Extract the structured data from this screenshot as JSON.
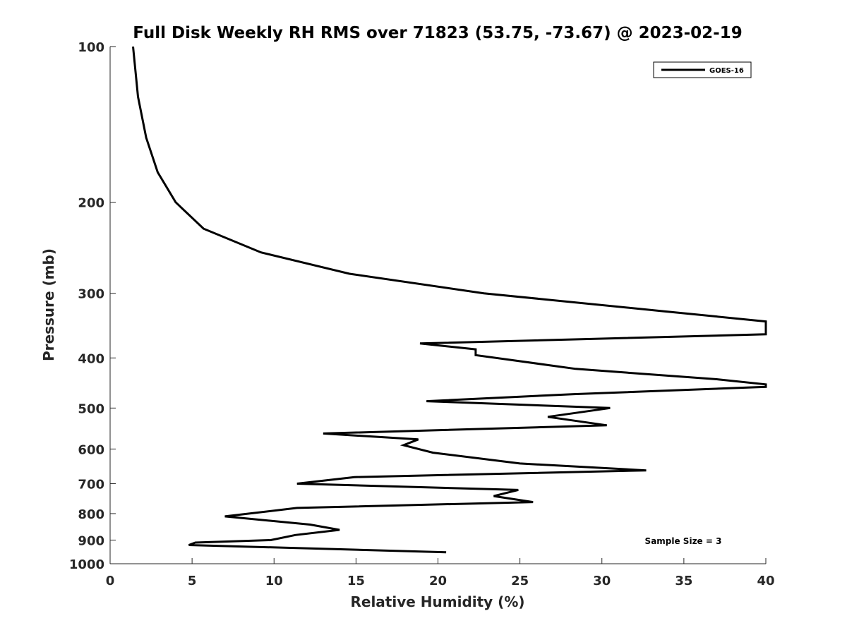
{
  "chart_data": {
    "type": "line",
    "title": "Full Disk Weekly RH RMS over 71823 (53.75, -73.67) @ 2023-02-19",
    "xlabel": "Relative Humidity (%)",
    "ylabel": "Pressure (mb)",
    "xlim": [
      0,
      40
    ],
    "ylim": [
      100,
      1000
    ],
    "y_scale": "log",
    "y_reversed": true,
    "x_ticks": [
      0,
      5,
      10,
      15,
      20,
      25,
      30,
      35,
      40
    ],
    "y_ticks": [
      100,
      200,
      300,
      400,
      500,
      600,
      700,
      800,
      900,
      1000
    ],
    "grid": false,
    "legend_position": "top-right",
    "annotation": "Sample Size = 3",
    "series": [
      {
        "name": "GOES-16",
        "color": "#000000",
        "points": [
          [
            1.4,
            100
          ],
          [
            1.7,
            125
          ],
          [
            2.2,
            150
          ],
          [
            2.9,
            175
          ],
          [
            4.0,
            200
          ],
          [
            5.7,
            225
          ],
          [
            9.2,
            250
          ],
          [
            14.6,
            275
          ],
          [
            22.8,
            300
          ],
          [
            33.8,
            325
          ],
          [
            40.0,
            340
          ],
          [
            40.0,
            360
          ],
          [
            18.9,
            375
          ],
          [
            22.3,
            385
          ],
          [
            22.3,
            395
          ],
          [
            28.4,
            420
          ],
          [
            37.1,
            440
          ],
          [
            40.0,
            450
          ],
          [
            40.0,
            455
          ],
          [
            28.3,
            470
          ],
          [
            19.3,
            485
          ],
          [
            30.5,
            500
          ],
          [
            26.7,
            520
          ],
          [
            30.3,
            540
          ],
          [
            13.0,
            560
          ],
          [
            18.8,
            575
          ],
          [
            17.9,
            590
          ],
          [
            19.7,
            610
          ],
          [
            25.0,
            640
          ],
          [
            32.7,
            660
          ],
          [
            14.9,
            680
          ],
          [
            11.4,
            700
          ],
          [
            24.9,
            720
          ],
          [
            23.4,
            740
          ],
          [
            25.8,
            760
          ],
          [
            11.4,
            780
          ],
          [
            7.0,
            810
          ],
          [
            12.2,
            840
          ],
          [
            14.0,
            860
          ],
          [
            11.3,
            880
          ],
          [
            9.8,
            900
          ],
          [
            5.2,
            910
          ],
          [
            4.8,
            920
          ],
          [
            20.5,
            950
          ]
        ]
      }
    ]
  }
}
